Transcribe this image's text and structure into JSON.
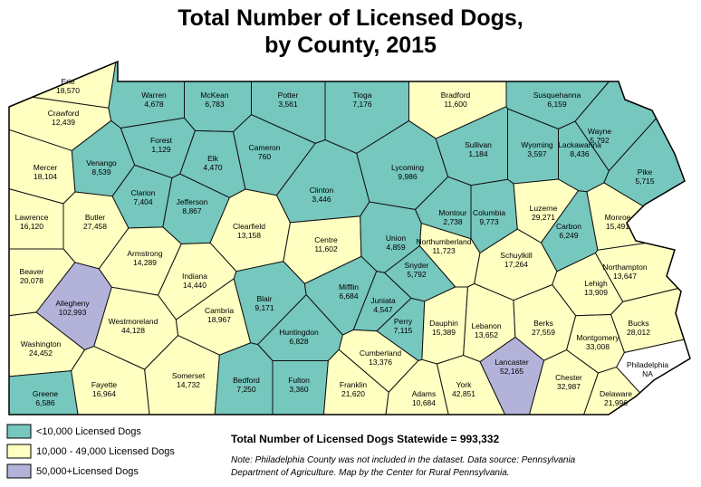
{
  "title": [
    "Total Number of Licensed Dogs,",
    "by County, 2015"
  ],
  "legend": [
    {
      "label": "<10,000 Licensed Dogs",
      "color": "#76c7bd"
    },
    {
      "label": "10,000 - 49,000 Licensed Dogs",
      "color": "#ffffc2"
    },
    {
      "label": "50,000+Licensed Dogs",
      "color": "#b3b3da"
    }
  ],
  "total": "Total Number of Licensed Dogs Statewide = 993,332",
  "note": [
    "Note: Philadelphia County was not included in the dataset. Data source: Pennsylvania",
    "Department of Agriculture. Map by the Center for Rural Pennsylvania."
  ],
  "counties": [
    {
      "name": "Erie",
      "value": "18,570",
      "class": 1
    },
    {
      "name": "Crawford",
      "value": "12,439",
      "class": 1
    },
    {
      "name": "Warren",
      "value": "4,678",
      "class": 0
    },
    {
      "name": "McKean",
      "value": "6,783",
      "class": 0
    },
    {
      "name": "Potter",
      "value": "3,561",
      "class": 0
    },
    {
      "name": "Tioga",
      "value": "7,176",
      "class": 0
    },
    {
      "name": "Bradford",
      "value": "11,600",
      "class": 1
    },
    {
      "name": "Susquehanna",
      "value": "6,159",
      "class": 0
    },
    {
      "name": "Wayne",
      "value": "5,792",
      "class": 0
    },
    {
      "name": "Mercer",
      "value": "18,104",
      "class": 1
    },
    {
      "name": "Venango",
      "value": "8,539",
      "class": 0
    },
    {
      "name": "Forest",
      "value": "1,129",
      "class": 0
    },
    {
      "name": "Elk",
      "value": "4,470",
      "class": 0
    },
    {
      "name": "Cameron",
      "value": "760",
      "class": 0
    },
    {
      "name": "Clinton",
      "value": "3,446",
      "class": 0
    },
    {
      "name": "Lycoming",
      "value": "9,986",
      "class": 0
    },
    {
      "name": "Sullivan",
      "value": "1,184",
      "class": 0
    },
    {
      "name": "Wyoming",
      "value": "3,597",
      "class": 0
    },
    {
      "name": "Lackawanna",
      "value": "8,436",
      "class": 0
    },
    {
      "name": "Pike",
      "value": "5,715",
      "class": 0
    },
    {
      "name": "Lawrence",
      "value": "16,120",
      "class": 1
    },
    {
      "name": "Butler",
      "value": "27,458",
      "class": 1
    },
    {
      "name": "Clarion",
      "value": "7,404",
      "class": 0
    },
    {
      "name": "Jefferson",
      "value": "8,867",
      "class": 0
    },
    {
      "name": "Clearfield",
      "value": "13,158",
      "class": 1
    },
    {
      "name": "Centre",
      "value": "11,602",
      "class": 1
    },
    {
      "name": "Union",
      "value": "4,859",
      "class": 0
    },
    {
      "name": "Montour",
      "value": "2,738",
      "class": 0
    },
    {
      "name": "Columbia",
      "value": "9,773",
      "class": 0
    },
    {
      "name": "Luzerne",
      "value": "29,271",
      "class": 1
    },
    {
      "name": "Monroe",
      "value": "15,491",
      "class": 1
    },
    {
      "name": "Beaver",
      "value": "20,078",
      "class": 1
    },
    {
      "name": "Armstrong",
      "value": "14,289",
      "class": 1
    },
    {
      "name": "Indiana",
      "value": "14,440",
      "class": 1
    },
    {
      "name": "Northumberland",
      "value": "11,723",
      "class": 1
    },
    {
      "name": "Snyder",
      "value": "5,792",
      "class": 0
    },
    {
      "name": "Carbon",
      "value": "6,249",
      "class": 0
    },
    {
      "name": "Schuylkill",
      "value": "17,264",
      "class": 1
    },
    {
      "name": "Northampton",
      "value": "13,647",
      "class": 1
    },
    {
      "name": "Lehigh",
      "value": "13,909",
      "class": 1
    },
    {
      "name": "Allegheny",
      "value": "102,993",
      "class": 2
    },
    {
      "name": "Westmoreland",
      "value": "44,128",
      "class": 1
    },
    {
      "name": "Cambria",
      "value": "18,967",
      "class": 1
    },
    {
      "name": "Blair",
      "value": "9,171",
      "class": 0
    },
    {
      "name": "Mifflin",
      "value": "6,684",
      "class": 0
    },
    {
      "name": "Juniata",
      "value": "4,547",
      "class": 0
    },
    {
      "name": "Huntingdon",
      "value": "6,828",
      "class": 0
    },
    {
      "name": "Perry",
      "value": "7,115",
      "class": 0
    },
    {
      "name": "Dauphin",
      "value": "15,389",
      "class": 1
    },
    {
      "name": "Lebanon",
      "value": "13,652",
      "class": 1
    },
    {
      "name": "Berks",
      "value": "27,559",
      "class": 1
    },
    {
      "name": "Bucks",
      "value": "28,012",
      "class": 1
    },
    {
      "name": "Montgomery",
      "value": "33,008",
      "class": 1
    },
    {
      "name": "Philadelphia",
      "value": "NA",
      "class": null
    },
    {
      "name": "Washington",
      "value": "24,452",
      "class": 1
    },
    {
      "name": "Fayette",
      "value": "16,964",
      "class": 1
    },
    {
      "name": "Greene",
      "value": "6,586",
      "class": 0
    },
    {
      "name": "Somerset",
      "value": "14,732",
      "class": 1
    },
    {
      "name": "Bedford",
      "value": "7,250",
      "class": 0
    },
    {
      "name": "Fulton",
      "value": "3,360",
      "class": 0
    },
    {
      "name": "Franklin",
      "value": "21,620",
      "class": 1
    },
    {
      "name": "Cumberland",
      "value": "13,376",
      "class": 1
    },
    {
      "name": "Adams",
      "value": "10,684",
      "class": 1
    },
    {
      "name": "York",
      "value": "42,851",
      "class": 1
    },
    {
      "name": "Lancaster",
      "value": "52,165",
      "class": 2
    },
    {
      "name": "Chester",
      "value": "32,987",
      "class": 1
    },
    {
      "name": "Delaware",
      "value": "21,996",
      "class": 1
    }
  ]
}
